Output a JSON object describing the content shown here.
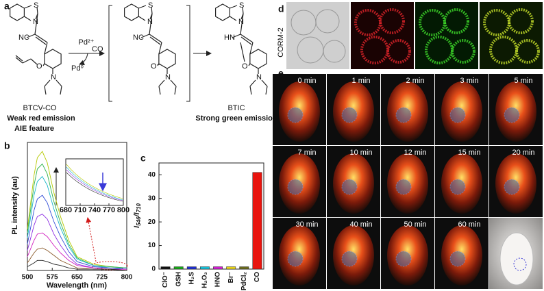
{
  "scheme": {
    "panel_label": "a",
    "molecules": [
      {
        "name": "BTCV-CO",
        "s": "S",
        "n": "N",
        "sub": "NC",
        "oxy": "O",
        "amine": "N"
      },
      {
        "s": "S",
        "n": "N",
        "sub": "NC",
        "oxy": "O⁻",
        "amine": "N"
      },
      {
        "name": "BTIC",
        "s": "S",
        "n": "N",
        "sub": "HN",
        "oxy": "O",
        "amine": "N"
      }
    ],
    "reagent": "Pd²⁺",
    "gas": "CO",
    "product": "Pd⁰",
    "weak": "Weak red emission",
    "aie": "AIE feature",
    "strong": "Strong green emission"
  },
  "chart_data": [
    {
      "type": "line",
      "panel_label": "b",
      "xlabel": "Wavelength (nm)",
      "ylabel": "PL intensity (au)",
      "x": [
        500,
        520,
        530,
        545,
        560,
        580,
        600,
        625,
        650,
        700,
        750,
        800
      ],
      "xlim": [
        500,
        800
      ],
      "xticks": [
        500,
        575,
        650,
        725,
        800
      ],
      "ylim": [
        0,
        100
      ],
      "series": [
        {
          "color": "#b5c900",
          "values": [
            33,
            76,
            90,
            95,
            86,
            62,
            43,
            24,
            11,
            5,
            3,
            2
          ]
        },
        {
          "color": "#2db34a",
          "values": [
            30,
            68,
            81,
            85,
            77,
            55,
            38,
            21,
            10,
            4,
            3,
            2
          ]
        },
        {
          "color": "#18b6c9",
          "values": [
            26,
            60,
            71,
            75,
            68,
            49,
            34,
            19,
            9,
            4,
            2,
            2
          ]
        },
        {
          "color": "#2f4bd6",
          "values": [
            21,
            48,
            57,
            60,
            54,
            39,
            27,
            15,
            7,
            3,
            2,
            1
          ]
        },
        {
          "color": "#8a2be2",
          "values": [
            16,
            36,
            43,
            45,
            41,
            29,
            20,
            11,
            5,
            2,
            1,
            1
          ]
        },
        {
          "color": "#d11fbf",
          "values": [
            11,
            24,
            29,
            30,
            27,
            20,
            14,
            8,
            4,
            2,
            1,
            1
          ]
        },
        {
          "color": "#8b5a2b",
          "values": [
            6,
            14,
            17,
            18,
            16,
            12,
            8,
            5,
            2,
            1,
            1,
            0
          ]
        },
        {
          "color": "#222222",
          "values": [
            3,
            6,
            8,
            8,
            7,
            5,
            4,
            2,
            1,
            1,
            1,
            0
          ]
        }
      ],
      "inset": {
        "xlim": [
          680,
          800
        ],
        "xticks": [
          680,
          710,
          740,
          770,
          800
        ]
      }
    },
    {
      "type": "bar",
      "panel_label": "c",
      "ylabel_parts": [
        "I",
        "546",
        "/I",
        "710"
      ],
      "categories": [
        "ClO⁻",
        "GSH",
        "H₂S",
        "H₂O₂",
        "HNO",
        "Br⁻",
        "PdCl₂",
        "CO"
      ],
      "values": [
        1,
        1,
        1,
        1,
        1,
        1,
        1,
        41
      ],
      "colors": [
        "#111111",
        "#19a619",
        "#1f2fd0",
        "#17c0d8",
        "#d21fd2",
        "#e6d21a",
        "#6b6b1e",
        "#e8140e"
      ],
      "ylim": [
        0,
        45
      ],
      "yticks": [
        0,
        10,
        20,
        30,
        40
      ]
    }
  ],
  "cells": {
    "panel_label": "d",
    "label": "CORM-2"
  },
  "imaging": {
    "panel_label": "e",
    "times": [
      "0 min",
      "1 min",
      "2 min",
      "3 min",
      "5 min",
      "7 min",
      "10 min",
      "12 min",
      "15 min",
      "20 min",
      "30 min",
      "40 min",
      "50 min",
      "60 min"
    ]
  }
}
